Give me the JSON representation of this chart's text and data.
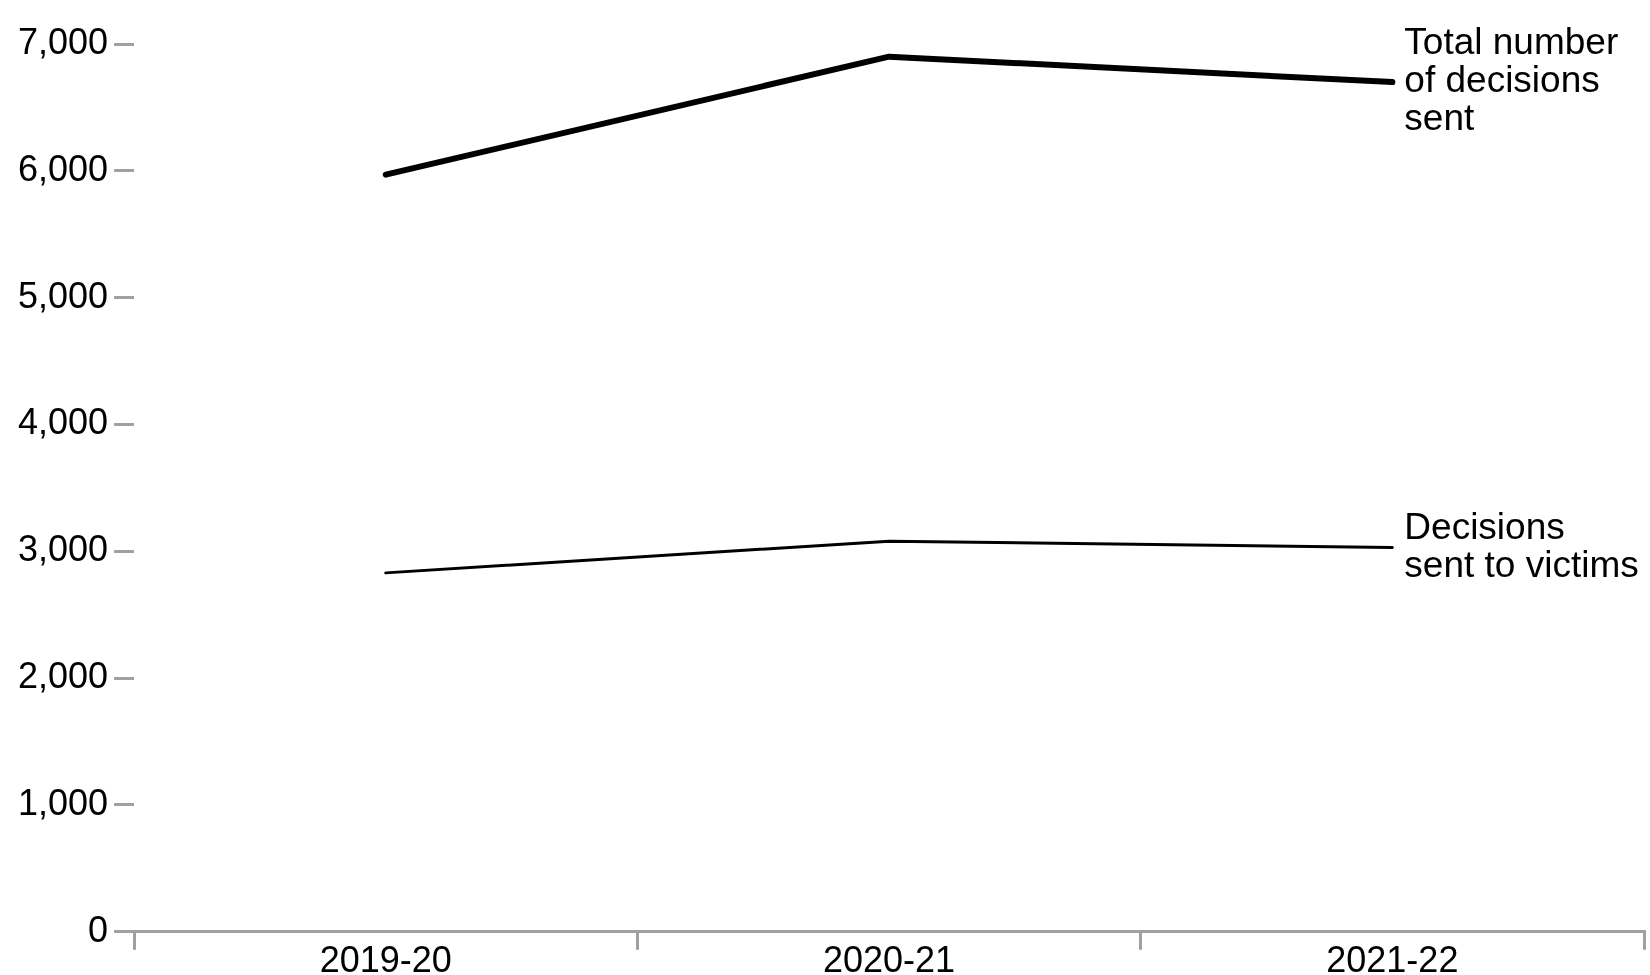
{
  "chart_data": {
    "type": "line",
    "categories": [
      "2019-20",
      "2020-21",
      "2021-22"
    ],
    "series": [
      {
        "name": "Total number of decisions sent",
        "color": "#000000",
        "values": [
          5970,
          6900,
          6700
        ]
      },
      {
        "name": "Decisions sent to victims",
        "color": "#000000",
        "values": [
          2830,
          3080,
          3030
        ]
      }
    ],
    "ylim": [
      0,
      7000
    ],
    "yticks": [
      0,
      {
        "value": 1000,
        "label": "1,000"
      },
      {
        "value": 2000,
        "label": "2,000"
      },
      {
        "value": 3000,
        "label": "3,000"
      },
      {
        "value": 4000,
        "label": "4,000"
      },
      {
        "value": 5000,
        "label": "5,000"
      },
      {
        "value": 6000,
        "label": "6,000"
      },
      {
        "value": 7000,
        "label": "7,000"
      }
    ],
    "marker": "none",
    "line_style": "solid"
  }
}
